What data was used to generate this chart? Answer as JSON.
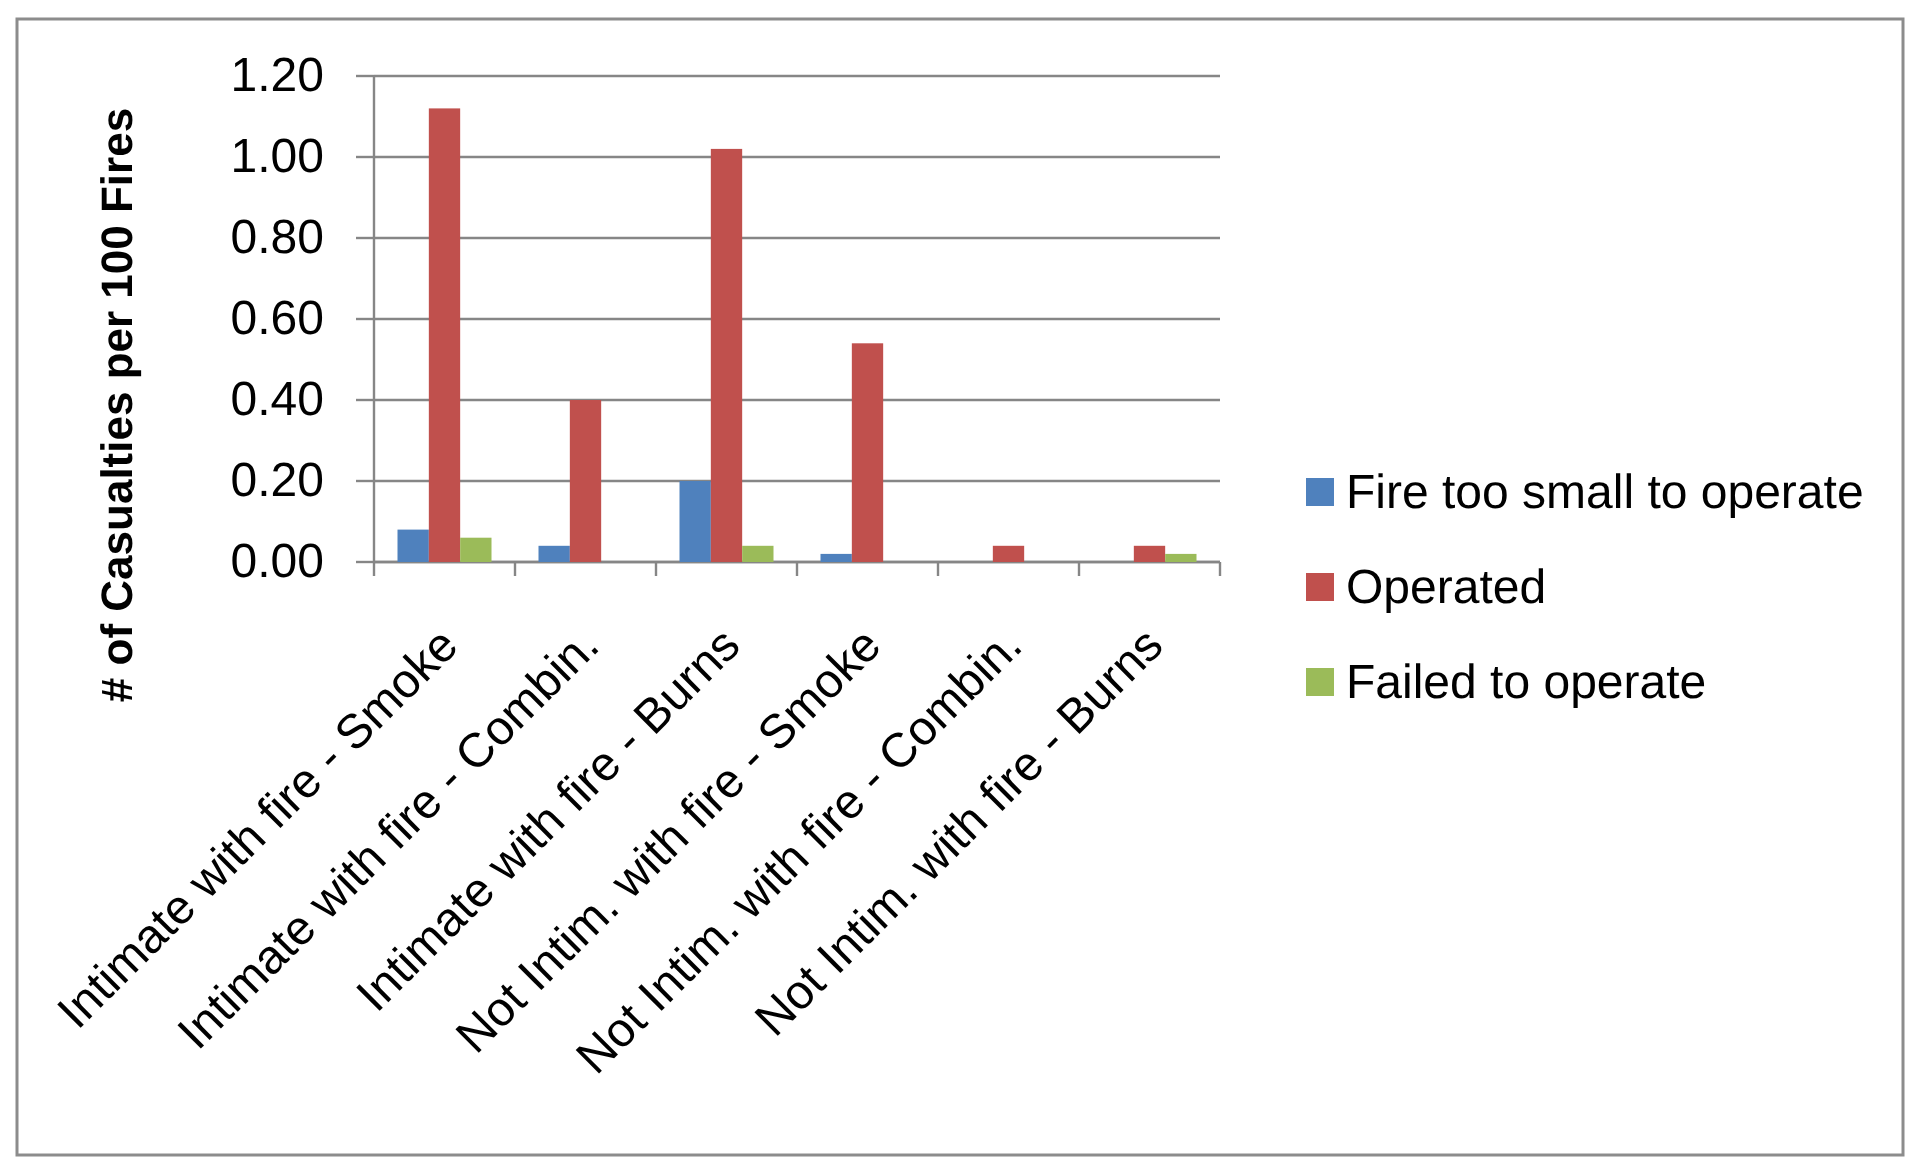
{
  "chart_data": {
    "type": "bar",
    "ylabel": "# of Casualties per 100 Fires",
    "categories": [
      "Intimate with fire - Smoke",
      "Intimate with fire - Combin.",
      "Intimate with fire - Burns",
      "Not Intim. with fire - Smoke",
      "Not Intim. with fire - Combin.",
      "Not Intim. with fire - Burns"
    ],
    "series": [
      {
        "name": "Fire too small to operate",
        "color": "#4f81bd",
        "values": [
          0.08,
          0.04,
          0.2,
          0.02,
          0,
          0
        ]
      },
      {
        "name": "Operated",
        "color": "#c0504d",
        "values": [
          1.12,
          0.4,
          1.02,
          0.54,
          0.04,
          0.04
        ]
      },
      {
        "name": "Failed to operate",
        "color": "#9bbb59",
        "values": [
          0.06,
          0,
          0.04,
          0,
          0,
          0.02
        ]
      }
    ],
    "ylim": [
      0,
      1.2
    ],
    "yticks": [
      {
        "value": 0,
        "label": "0.00"
      },
      {
        "value": 0.2,
        "label": "0.20"
      },
      {
        "value": 0.4,
        "label": "0.40"
      },
      {
        "value": 0.6,
        "label": "0.60"
      },
      {
        "value": 0.8,
        "label": "0.80"
      },
      {
        "value": 1.0,
        "label": "1.00"
      },
      {
        "value": 1.2,
        "label": "1.20"
      }
    ],
    "grid": "y",
    "legend": "right"
  }
}
